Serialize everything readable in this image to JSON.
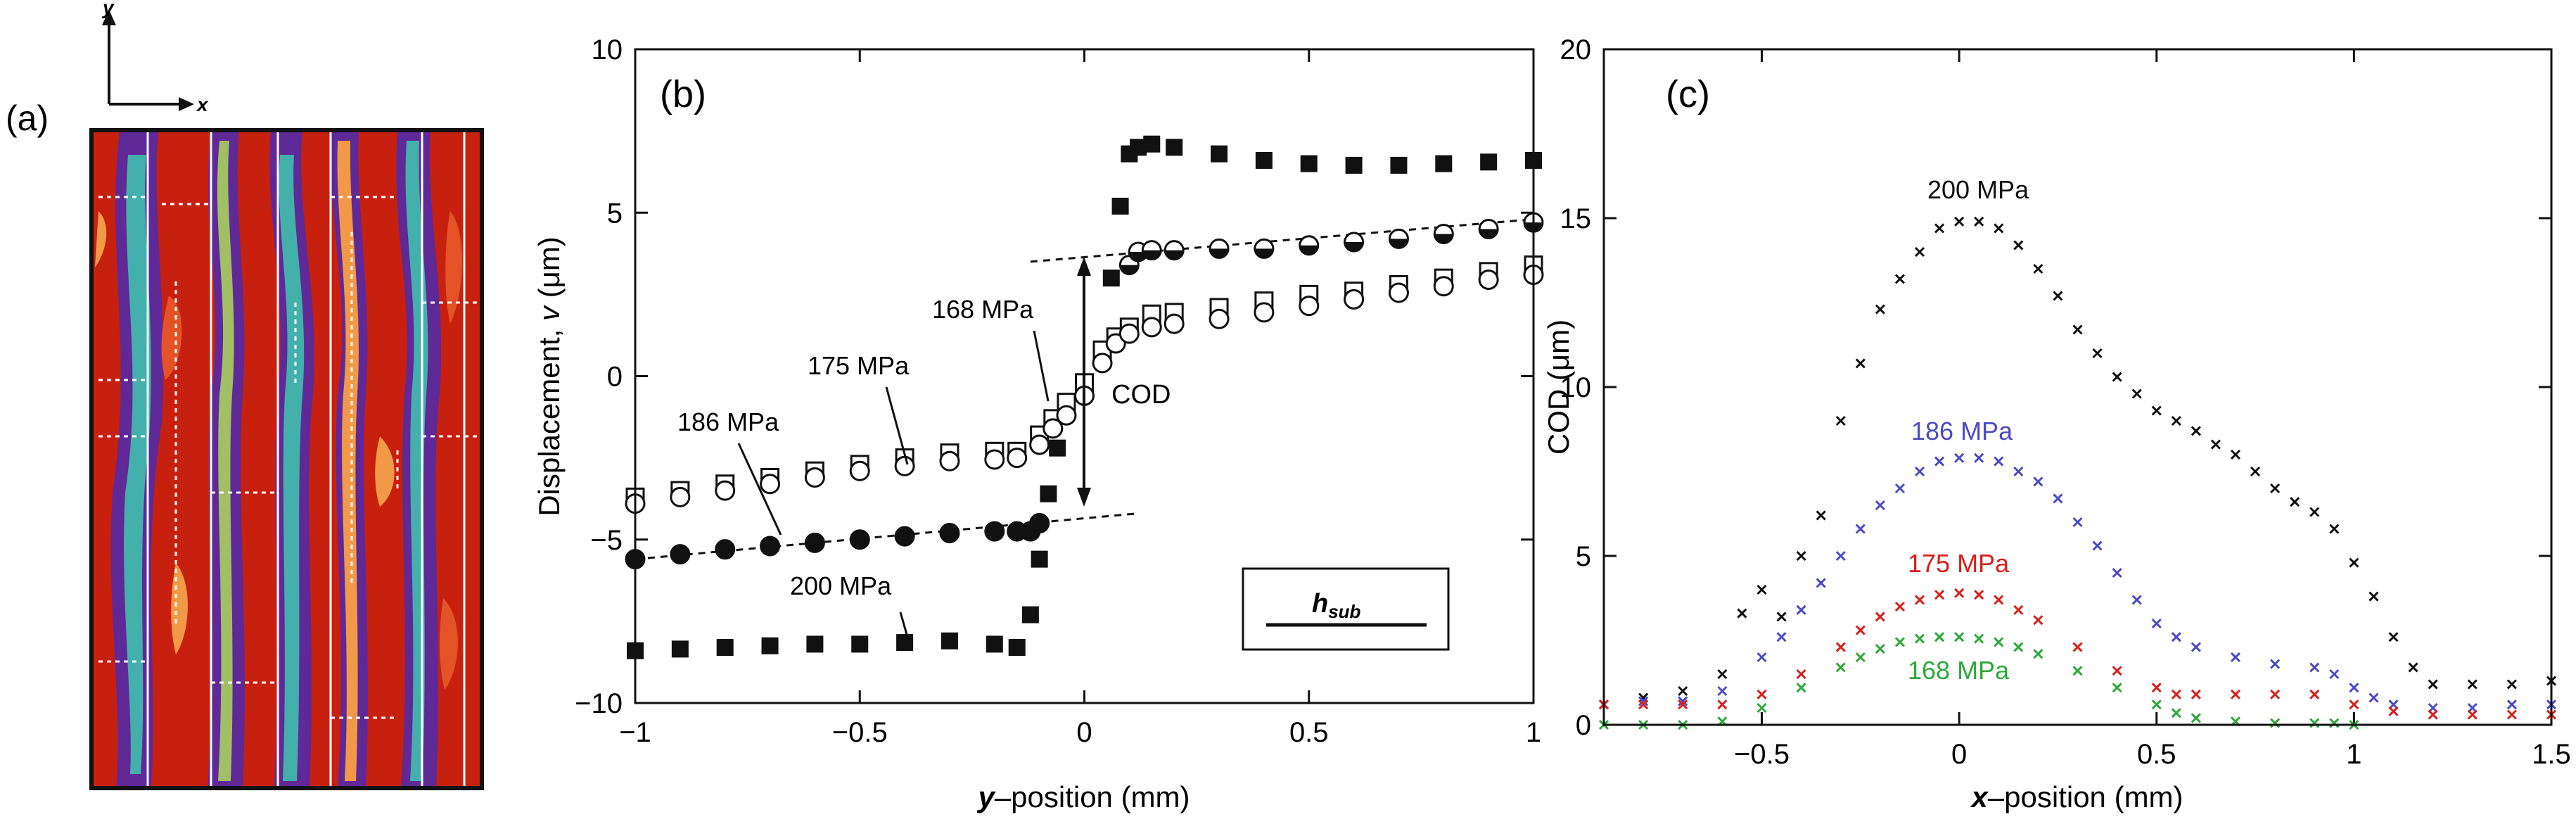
{
  "panel_a": {
    "label": "(a)",
    "axis_y": "y",
    "axis_x": "x",
    "map_description_colors": [
      "#c8200f",
      "#e6552a",
      "#f5a04a",
      "#9fc86a",
      "#3cb8b4",
      "#5a2aa0"
    ]
  },
  "chart_data": [
    {
      "panel": "(b)",
      "type": "scatter",
      "xlabel_italic": "y",
      "xlabel_rest": "–position (mm)",
      "ylabel_prefix": "Displacement, ",
      "ylabel_var": "v",
      "ylabel_suffix": " (μm)",
      "xlim": [
        -1,
        1
      ],
      "ylim": [
        -10,
        10
      ],
      "xticks": [
        -1,
        -0.5,
        0,
        0.5,
        1
      ],
      "xtick_labels": [
        "−1",
        "−0.5",
        "0",
        "0.5",
        "1"
      ],
      "yticks": [
        -10,
        -5,
        0,
        5,
        10
      ],
      "ytick_labels": [
        "−10",
        "−5",
        "0",
        "5",
        "10"
      ],
      "series": [
        {
          "name": "168 MPa",
          "marker": "open-square",
          "x": [
            -1.0,
            -0.9,
            -0.8,
            -0.7,
            -0.6,
            -0.5,
            -0.4,
            -0.3,
            -0.2,
            -0.15,
            -0.1,
            -0.07,
            -0.04,
            0.0,
            0.04,
            0.07,
            0.1,
            0.15,
            0.2,
            0.3,
            0.4,
            0.5,
            0.6,
            0.7,
            0.8,
            0.9,
            1.0
          ],
          "y": [
            -3.7,
            -3.5,
            -3.3,
            -3.1,
            -2.9,
            -2.7,
            -2.5,
            -2.35,
            -2.3,
            -2.3,
            -1.8,
            -1.3,
            -0.8,
            -0.2,
            0.8,
            1.2,
            1.5,
            1.9,
            1.95,
            2.1,
            2.3,
            2.5,
            2.6,
            2.8,
            3.0,
            3.2,
            3.4
          ]
        },
        {
          "name": "175 MPa",
          "marker": "open-circle",
          "x": [
            -1.0,
            -0.9,
            -0.8,
            -0.7,
            -0.6,
            -0.5,
            -0.4,
            -0.3,
            -0.2,
            -0.15,
            -0.1,
            -0.07,
            -0.04,
            0.0,
            0.04,
            0.07,
            0.1,
            0.15,
            0.2,
            0.3,
            0.4,
            0.5,
            0.6,
            0.7,
            0.8,
            0.9,
            1.0
          ],
          "y": [
            -3.9,
            -3.7,
            -3.5,
            -3.3,
            -3.1,
            -2.9,
            -2.75,
            -2.6,
            -2.55,
            -2.5,
            -2.1,
            -1.6,
            -1.2,
            -0.6,
            0.4,
            1.0,
            1.3,
            1.5,
            1.6,
            1.75,
            1.95,
            2.15,
            2.35,
            2.55,
            2.75,
            2.95,
            3.1
          ]
        },
        {
          "name": "186 MPa",
          "marker": "half-filled-circle",
          "x": [
            -1.0,
            -0.9,
            -0.8,
            -0.7,
            -0.6,
            -0.5,
            -0.4,
            -0.3,
            -0.2,
            -0.15,
            -0.12,
            -0.1,
            0.1,
            0.12,
            0.15,
            0.2,
            0.3,
            0.4,
            0.5,
            0.6,
            0.7,
            0.8,
            0.9,
            1.0
          ],
          "y": [
            -5.6,
            -5.45,
            -5.3,
            -5.2,
            -5.1,
            -5.0,
            -4.9,
            -4.8,
            -4.75,
            -4.75,
            -4.75,
            -4.5,
            3.4,
            3.8,
            3.85,
            3.85,
            3.9,
            3.9,
            4.0,
            4.1,
            4.2,
            4.35,
            4.5,
            4.7
          ]
        },
        {
          "name": "200 MPa",
          "marker": "filled-square",
          "x": [
            -1.0,
            -0.9,
            -0.8,
            -0.7,
            -0.6,
            -0.5,
            -0.4,
            -0.3,
            -0.2,
            -0.15,
            -0.12,
            -0.1,
            -0.08,
            -0.06,
            0.06,
            0.08,
            0.1,
            0.12,
            0.15,
            0.2,
            0.3,
            0.4,
            0.5,
            0.6,
            0.7,
            0.8,
            0.9,
            1.0
          ],
          "y": [
            -8.4,
            -8.35,
            -8.3,
            -8.25,
            -8.2,
            -8.2,
            -8.15,
            -8.1,
            -8.2,
            -8.3,
            -7.3,
            -5.6,
            -3.6,
            -2.2,
            3.0,
            5.2,
            6.8,
            7.0,
            7.1,
            7.0,
            6.8,
            6.6,
            6.5,
            6.45,
            6.45,
            6.5,
            6.55,
            6.6
          ]
        }
      ],
      "series_labels": [
        "168 MPa",
        "175 MPa",
        "186 MPa",
        "200 MPa"
      ],
      "annotation_cod": "COD",
      "scalebar_label_main": "h",
      "scalebar_label_sub": "sub"
    },
    {
      "panel": "(c)",
      "type": "scatter",
      "xlabel_italic": "x",
      "xlabel_rest": "–position (mm)",
      "ylabel": "COD (μm)",
      "xlim": [
        -0.9,
        1.5
      ],
      "ylim": [
        0,
        20
      ],
      "xticks": [
        -0.5,
        0,
        0.5,
        1,
        1.5
      ],
      "xtick_labels": [
        "−0.5",
        "0",
        "0.5",
        "1",
        "1.5"
      ],
      "yticks": [
        0,
        5,
        10,
        15,
        20
      ],
      "ytick_labels": [
        "0",
        "5",
        "10",
        "15",
        "20"
      ],
      "series": [
        {
          "name": "200 MPa",
          "color": "#111111",
          "x": [
            -0.9,
            -0.8,
            -0.7,
            -0.6,
            -0.55,
            -0.5,
            -0.45,
            -0.4,
            -0.35,
            -0.3,
            -0.25,
            -0.2,
            -0.15,
            -0.1,
            -0.05,
            0.0,
            0.05,
            0.1,
            0.15,
            0.2,
            0.25,
            0.3,
            0.35,
            0.4,
            0.45,
            0.5,
            0.55,
            0.6,
            0.65,
            0.7,
            0.75,
            0.8,
            0.85,
            0.9,
            0.95,
            1.0,
            1.05,
            1.1,
            1.15,
            1.2,
            1.3,
            1.4,
            1.5
          ],
          "y": [
            0.6,
            0.8,
            1.0,
            1.5,
            3.3,
            4.0,
            3.2,
            5.0,
            6.2,
            9.0,
            10.7,
            12.3,
            13.2,
            14.0,
            14.7,
            14.9,
            14.9,
            14.7,
            14.2,
            13.5,
            12.7,
            11.7,
            11.0,
            10.3,
            9.8,
            9.3,
            9.0,
            8.7,
            8.3,
            8.0,
            7.5,
            7.0,
            6.6,
            6.3,
            5.8,
            4.8,
            3.8,
            2.6,
            1.7,
            1.2,
            1.2,
            1.2,
            1.3
          ]
        },
        {
          "name": "186 MPa",
          "color": "#4a4ac8",
          "x": [
            -0.9,
            -0.8,
            -0.7,
            -0.6,
            -0.5,
            -0.45,
            -0.4,
            -0.35,
            -0.3,
            -0.25,
            -0.2,
            -0.15,
            -0.1,
            -0.05,
            0.0,
            0.05,
            0.1,
            0.15,
            0.2,
            0.25,
            0.3,
            0.35,
            0.4,
            0.45,
            0.5,
            0.55,
            0.6,
            0.7,
            0.8,
            0.9,
            0.95,
            1.0,
            1.05,
            1.1,
            1.2,
            1.3,
            1.4,
            1.5
          ],
          "y": [
            0.6,
            0.7,
            0.7,
            1.0,
            2.0,
            2.6,
            3.4,
            4.2,
            5.0,
            5.8,
            6.5,
            7.0,
            7.5,
            7.8,
            7.9,
            7.9,
            7.8,
            7.5,
            7.2,
            6.7,
            6.0,
            5.3,
            4.5,
            3.7,
            3.0,
            2.6,
            2.3,
            2.0,
            1.8,
            1.7,
            1.5,
            1.1,
            0.8,
            0.6,
            0.5,
            0.5,
            0.6,
            0.6
          ]
        },
        {
          "name": "175 MPa",
          "color": "#d8201e",
          "x": [
            -0.9,
            -0.8,
            -0.7,
            -0.6,
            -0.5,
            -0.4,
            -0.3,
            -0.25,
            -0.2,
            -0.15,
            -0.1,
            -0.05,
            0.0,
            0.05,
            0.1,
            0.15,
            0.2,
            0.3,
            0.4,
            0.5,
            0.55,
            0.6,
            0.7,
            0.8,
            0.9,
            1.0,
            1.1,
            1.2,
            1.3,
            1.4,
            1.5
          ],
          "y": [
            0.6,
            0.6,
            0.6,
            0.6,
            0.9,
            1.5,
            2.3,
            2.8,
            3.2,
            3.5,
            3.7,
            3.85,
            3.9,
            3.85,
            3.7,
            3.4,
            3.1,
            2.3,
            1.6,
            1.1,
            0.9,
            0.9,
            0.9,
            0.9,
            0.9,
            0.6,
            0.4,
            0.3,
            0.3,
            0.3,
            0.3
          ]
        },
        {
          "name": "168 MPa",
          "color": "#2ea83a",
          "x": [
            -0.9,
            -0.8,
            -0.7,
            -0.6,
            -0.5,
            -0.4,
            -0.3,
            -0.25,
            -0.2,
            -0.15,
            -0.1,
            -0.05,
            0.0,
            0.05,
            0.1,
            0.15,
            0.2,
            0.3,
            0.4,
            0.5,
            0.55,
            0.6,
            0.7,
            0.8,
            0.9,
            0.95,
            1.0
          ],
          "y": [
            0.0,
            0.0,
            0.0,
            0.1,
            0.5,
            1.1,
            1.7,
            2.0,
            2.25,
            2.45,
            2.55,
            2.6,
            2.6,
            2.55,
            2.45,
            2.3,
            2.1,
            1.6,
            1.1,
            0.6,
            0.35,
            0.2,
            0.1,
            0.05,
            0.05,
            0.05,
            0.0
          ]
        }
      ],
      "series_labels": [
        "200 MPa",
        "186 MPa",
        "175 MPa",
        "168 MPa"
      ]
    }
  ]
}
